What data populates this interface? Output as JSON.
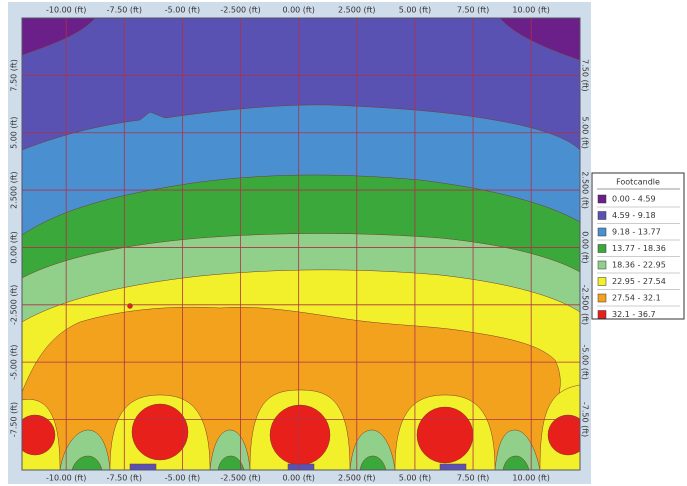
{
  "chart_data": {
    "type": "contour",
    "xlim": [
      -11.9,
      12.1
    ],
    "ylim": [
      -9.7,
      10
    ],
    "xticks": [
      {
        "value": -10,
        "label": "-10.00 (ft)"
      },
      {
        "value": -7.5,
        "label": "-7.50 (ft)"
      },
      {
        "value": -5,
        "label": "-5.00 (ft)"
      },
      {
        "value": -2.5,
        "label": "-2.500 (ft)"
      },
      {
        "value": 0,
        "label": "0.00 (ft)"
      },
      {
        "value": 2.5,
        "label": "2.500 (ft)"
      },
      {
        "value": 5,
        "label": "5.00 (ft)"
      },
      {
        "value": 7.5,
        "label": "7.50 (ft)"
      },
      {
        "value": 10,
        "label": "10.00 (ft)"
      }
    ],
    "yticks": [
      {
        "value": 7.5,
        "label": "7.50 (ft)"
      },
      {
        "value": 5,
        "label": "5.00 (ft)"
      },
      {
        "value": 2.5,
        "label": "2.500 (ft)"
      },
      {
        "value": 0,
        "label": "0.00 (ft)"
      },
      {
        "value": -2.5,
        "label": "-2.500 (ft)"
      },
      {
        "value": -5,
        "label": "-5.00 (ft)"
      },
      {
        "value": -7.5,
        "label": "-7.50 (ft)"
      }
    ],
    "grid": true,
    "grid_color": "#b0304a",
    "legend": {
      "title": "Footcandle",
      "position": "right",
      "items": [
        {
          "label": "0.00 - 4.59",
          "color": "#6b1f88"
        },
        {
          "label": "4.59 - 9.18",
          "color": "#5a52b2"
        },
        {
          "label": "9.18 - 13.77",
          "color": "#4a8fd0"
        },
        {
          "label": "13.77 - 18.36",
          "color": "#3aa83a"
        },
        {
          "label": "18.36 - 22.95",
          "color": "#90d08a"
        },
        {
          "label": "22.95 - 27.54",
          "color": "#f2f02a"
        },
        {
          "label": "27.54 - 32.1",
          "color": "#f3a21e"
        },
        {
          "label": "32.1 - 36.7",
          "color": "#e8201c"
        }
      ]
    }
  }
}
